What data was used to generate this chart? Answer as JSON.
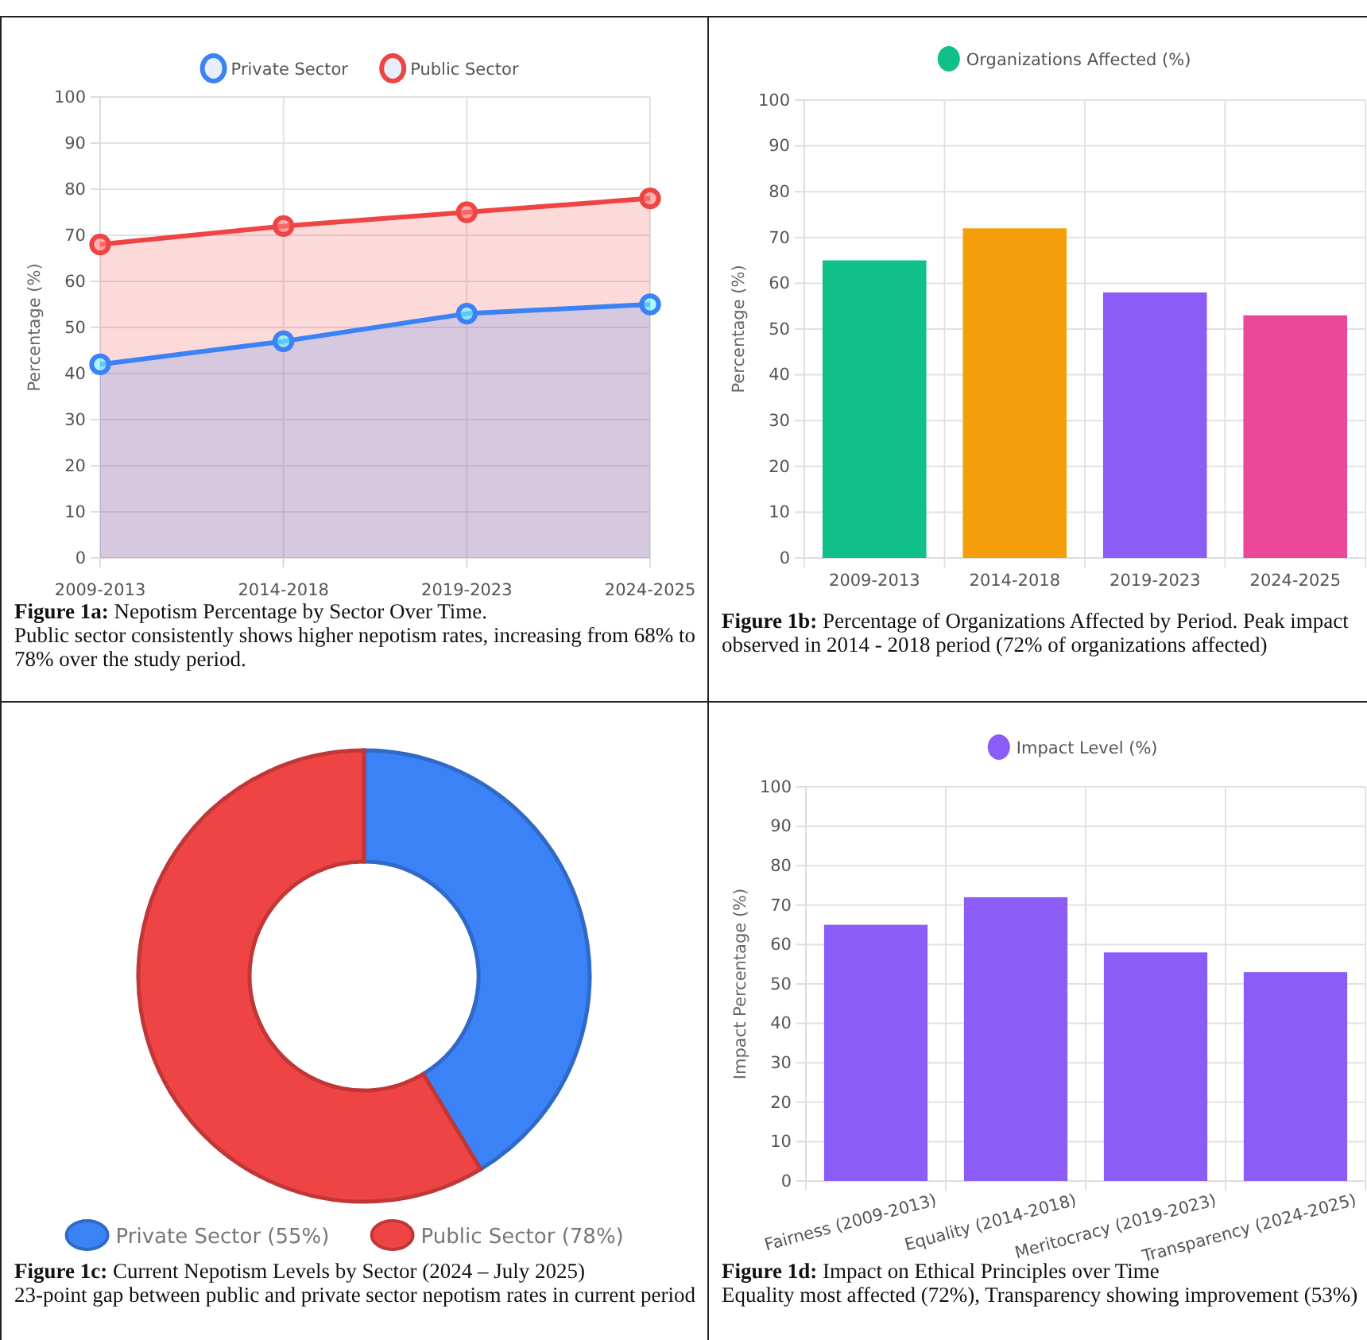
{
  "chart_data": [
    {
      "type": "area",
      "categories": [
        "2009-2013",
        "2014-2018",
        "2019-2023",
        "2024-2025"
      ],
      "ylabel": "Percentage (%)",
      "ylim": [
        0,
        100
      ],
      "yticks": [
        0,
        10,
        20,
        30,
        40,
        50,
        60,
        70,
        80,
        90,
        100
      ],
      "grid": true,
      "legend": "top",
      "marker": "circle",
      "series": [
        {
          "name": "Private Sector",
          "color": "#3b82f6",
          "values": [
            42,
            47,
            53,
            55
          ]
        },
        {
          "name": "Public Sector",
          "color": "#ef4444",
          "values": [
            68,
            72,
            75,
            78
          ]
        }
      ],
      "annotations": [
        "Figure 1a: Nepotism Percentage by Sector Over Time.",
        "Public sector consistently shows higher nepotism rates, increasing from 68% to 78% over the study period."
      ]
    },
    {
      "type": "bar",
      "categories": [
        "2009-2013",
        "2014-2018",
        "2019-2023",
        "2024-2025"
      ],
      "ylabel": "Percentage (%)",
      "ylim": [
        0,
        100
      ],
      "yticks": [
        0,
        10,
        20,
        30,
        40,
        50,
        60,
        70,
        80,
        90,
        100
      ],
      "grid": true,
      "legend": "top",
      "series": [
        {
          "name": "Organizations Affected (%)",
          "colors": [
            "#10c088",
            "#f59e0b",
            "#8b5cf6",
            "#ec4899"
          ],
          "values": [
            65,
            72,
            58,
            53
          ]
        }
      ],
      "annotations": [
        "Figure 1b: Percentage of Organizations Affected by Period. Peak impact observed in 2014 - 2018 period (72% of organizations affected)"
      ]
    },
    {
      "type": "donut",
      "categories": [
        "Private Sector (55%)",
        "Public Sector (78%)"
      ],
      "values": [
        55,
        78
      ],
      "colors": [
        "#3b82f6",
        "#ef4444"
      ],
      "legend": "bottom",
      "annotations": [
        "Figure 1c: Current Nepotism Levels by Sector (2024 – July 2025)",
        "23-point gap between public and private sector nepotism rates in current period"
      ]
    },
    {
      "type": "bar",
      "categories": [
        "Fairness (2009-2013)",
        "Equality (2014-2018)",
        "Meritocracy (2019-2023)",
        "Transparency (2024-2025)"
      ],
      "ylabel": "Impact Percentage (%)",
      "ylim": [
        0,
        100
      ],
      "yticks": [
        0,
        10,
        20,
        30,
        40,
        50,
        60,
        70,
        80,
        90,
        100
      ],
      "grid": true,
      "legend": "top",
      "series": [
        {
          "name": "Impact Level (%)",
          "color": "#8b5cf6",
          "values": [
            65,
            72,
            58,
            53
          ]
        }
      ],
      "annotations": [
        "Figure 1d: Impact on Ethical Principles over Time",
        "Equality most affected (72%), Transparency showing improvement (53%)"
      ]
    }
  ]
}
